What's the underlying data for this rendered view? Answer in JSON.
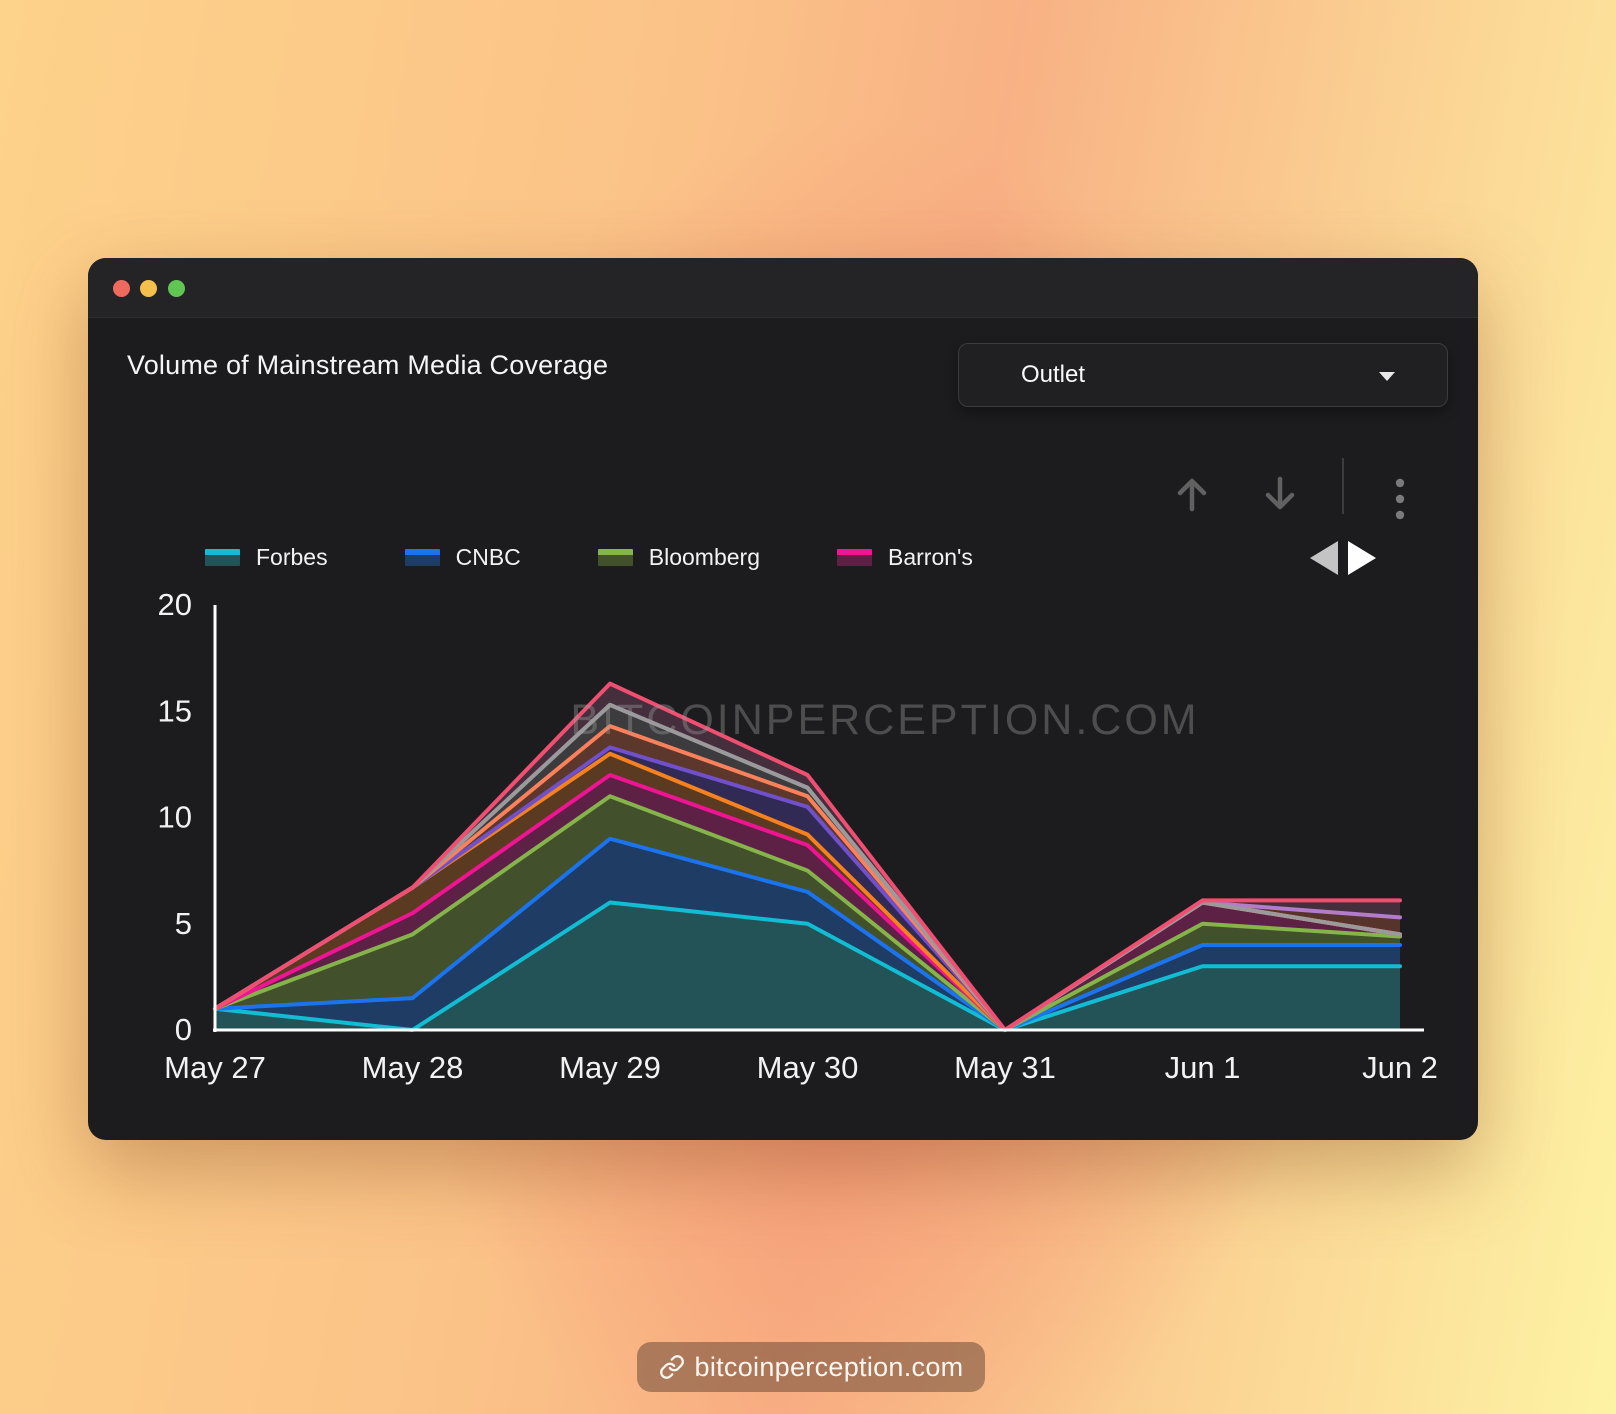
{
  "window": {
    "header": {
      "title": "Volume of Mainstream Media Coverage",
      "dropdown_label": "Outlet"
    },
    "toolbar": {
      "icons": [
        "up-arrow",
        "down-arrow",
        "kebab-menu"
      ]
    },
    "legend": {
      "visible_items": [
        {
          "label": "Forbes",
          "line_color": "#12bdd3",
          "fill_color": "#235257"
        },
        {
          "label": "CNBC",
          "line_color": "#1b74ee",
          "fill_color": "#1e3c64"
        },
        {
          "label": "Bloomberg",
          "line_color": "#84b44a",
          "fill_color": "#42502b"
        },
        {
          "label": "Barron's",
          "line_color": "#ee1492",
          "fill_color": "#5c2145"
        }
      ]
    }
  },
  "chart_data": {
    "type": "area",
    "stacked": true,
    "title": "Volume of Mainstream Media Coverage",
    "watermark": "BITCOINPERCEPTION.COM",
    "x": [
      "May 27",
      "May 28",
      "May 29",
      "May 30",
      "May 31",
      "Jun 1",
      "Jun 2"
    ],
    "ylim": [
      0,
      20
    ],
    "yticks": [
      0,
      5,
      10,
      15,
      20
    ],
    "grid": false,
    "legend_position": "top",
    "axis_color": "#ffffff",
    "series": [
      {
        "name": "Forbes",
        "line_color": "#12bdd3",
        "fill_color": "#235257",
        "values": [
          1,
          0,
          6,
          5,
          0,
          3,
          3
        ]
      },
      {
        "name": "CNBC",
        "line_color": "#1b74ee",
        "fill_color": "#1e3c64",
        "values": [
          0,
          1.5,
          3,
          1.5,
          0,
          1,
          1
        ]
      },
      {
        "name": "Bloomberg",
        "line_color": "#84b44a",
        "fill_color": "#42502b",
        "values": [
          0,
          3,
          2,
          1,
          0,
          1,
          0.4
        ]
      },
      {
        "name": "Barron's",
        "line_color": "#ee1492",
        "fill_color": "#5c2145",
        "values": [
          0,
          1,
          1,
          1.2,
          0,
          1,
          0.1
        ]
      },
      {
        "name": "unlabeled-orange",
        "line_color": "#f5821f",
        "fill_color": "#5a3a20",
        "values": [
          0,
          1.2,
          1,
          0.5,
          0,
          0,
          0
        ]
      },
      {
        "name": "unlabeled-purple",
        "line_color": "#7150cc",
        "fill_color": "#302a54",
        "values": [
          0,
          0,
          0.3,
          1.3,
          0,
          0,
          0
        ]
      },
      {
        "name": "unlabeled-coral",
        "line_color": "#fb815b",
        "fill_color": "#5c382c",
        "values": [
          0,
          0,
          1,
          0.5,
          0,
          0,
          0
        ]
      },
      {
        "name": "unlabeled-gray",
        "line_color": "#9a9a9a",
        "fill_color": "#3c3c3e",
        "values": [
          0,
          0,
          1,
          0.4,
          0,
          0,
          0
        ]
      },
      {
        "name": "unlabeled-orchid",
        "line_color": "#b27cca",
        "fill_color": "#57342b",
        "values": [
          0,
          0,
          0,
          0,
          0,
          0,
          0.8
        ]
      },
      {
        "name": "unlabeled-crimson",
        "line_color": "#f04f72",
        "fill_color": "#452f3c",
        "values": [
          0,
          0,
          1,
          0.6,
          0,
          0.1,
          0.8
        ]
      }
    ]
  },
  "footer": {
    "link_text": "bitcoinperception.com"
  }
}
